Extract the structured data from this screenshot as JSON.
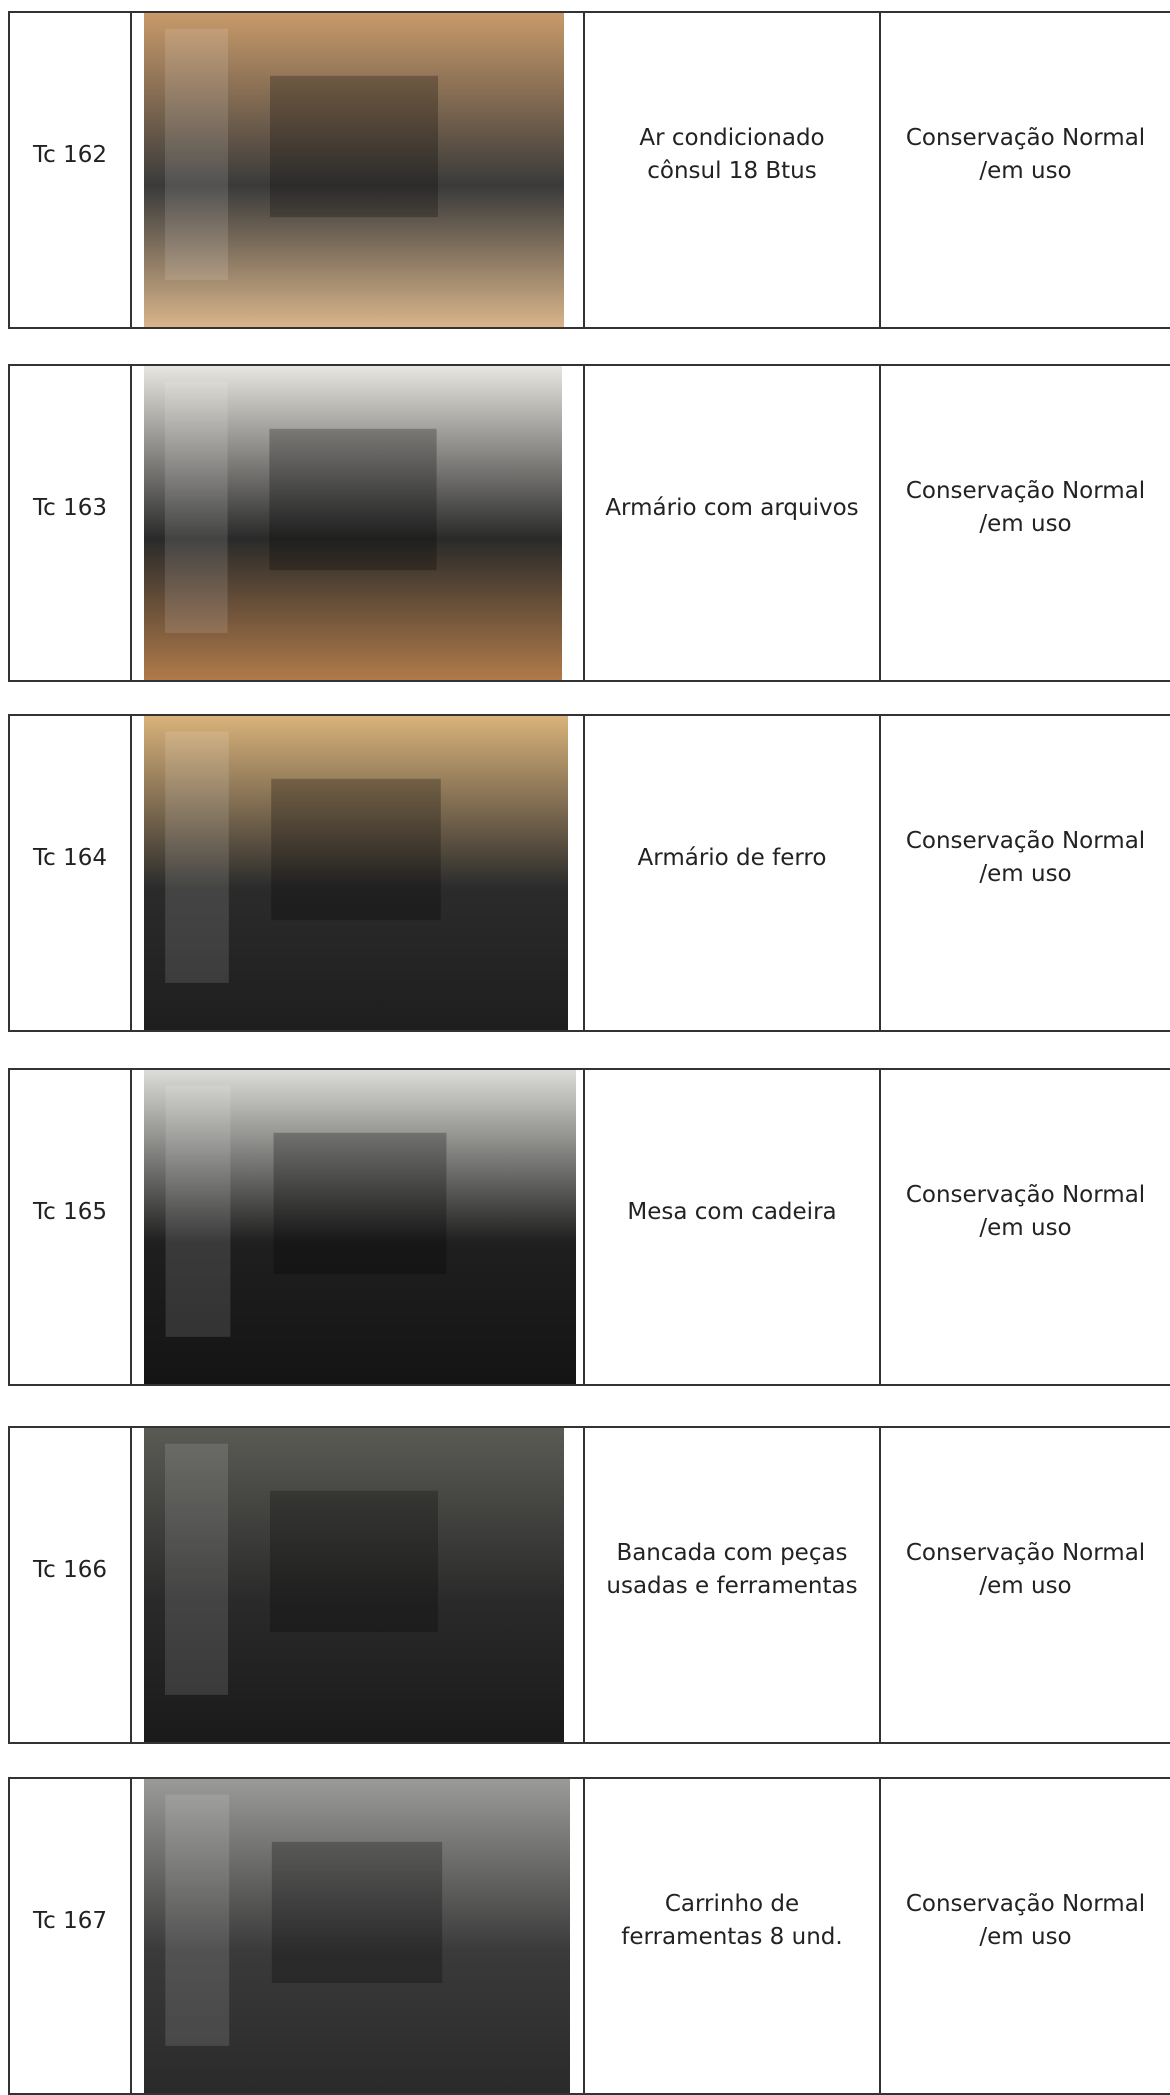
{
  "table": {
    "rows": [
      {
        "code": "Tc 162",
        "description": [
          "Ar condicionado",
          "cônsul 18 Btus"
        ],
        "status": [
          "Conservação Normal",
          "/em uso"
        ]
      },
      {
        "code": "Tc 163",
        "description": [
          "Armário com arquivos"
        ],
        "status": [
          "Conservação Normal",
          "/em uso"
        ]
      },
      {
        "code": "Tc 164",
        "description": [
          "Armário de ferro"
        ],
        "status": [
          "Conservação Normal",
          "/em uso"
        ]
      },
      {
        "code": "Tc 165",
        "description": [
          "Mesa com cadeira"
        ],
        "status": [
          "Conservação Normal",
          "/em uso"
        ]
      },
      {
        "code": "Tc 166",
        "description": [
          "Bancada com peças",
          "usadas e ferramentas"
        ],
        "status": [
          "Conservação Normal",
          "/em uso"
        ]
      },
      {
        "code": "Tc 167",
        "description": [
          "Carrinho de",
          "ferramentas 8 und."
        ],
        "status": [
          "Conservação Normal",
          "/em uso"
        ]
      }
    ]
  }
}
